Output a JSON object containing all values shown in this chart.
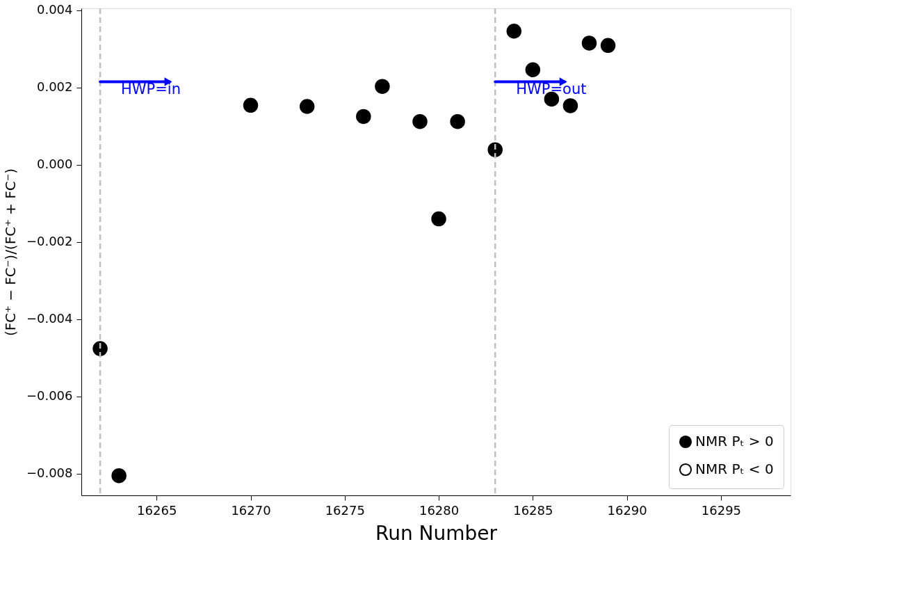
{
  "chart_data": {
    "type": "scatter",
    "xlabel": "Run Number",
    "ylabel": "(FC⁺ − FC⁻)/(FC⁺ + FC⁻)",
    "x": [
      16262,
      16263,
      16270,
      16273,
      16276,
      16277,
      16279,
      16280,
      16281,
      16283,
      16284,
      16285,
      16286,
      16287,
      16288,
      16289
    ],
    "series": [
      {
        "name": "NMR Pₜ > 0",
        "color": "#000000",
        "values": [
          -0.00476,
          -0.00805,
          0.00154,
          0.00151,
          0.00125,
          0.00203,
          0.00112,
          -0.0014,
          0.00112,
          0.00039,
          0.00346,
          0.00246,
          0.0017,
          0.00153,
          0.00315,
          0.00309
        ]
      },
      {
        "name": "NMR Pₜ < 0",
        "color": "#ffffff",
        "values": [
          null,
          null,
          null,
          null,
          null,
          null,
          null,
          null,
          null,
          null,
          null,
          null,
          null,
          null,
          null,
          null
        ]
      }
    ],
    "marker": "circle",
    "xlim": [
      16261,
      16298.7
    ],
    "ylim": [
      -0.00856,
      0.00405
    ],
    "xticks": [
      16265,
      16270,
      16275,
      16280,
      16285,
      16290,
      16295
    ],
    "yticks": [
      {
        "value": -0.008,
        "label": "−0.008"
      },
      {
        "value": -0.006,
        "label": "−0.006"
      },
      {
        "value": -0.004,
        "label": "−0.004"
      },
      {
        "value": -0.002,
        "label": "−0.002"
      },
      {
        "value": 0,
        "label": "0.000"
      },
      {
        "value": 0.002,
        "label": "0.002"
      },
      {
        "value": 0.004,
        "label": "0.004"
      }
    ],
    "ref_lines": [
      {
        "axis": "x",
        "value": 16262,
        "color": "#c0c0c0",
        "line_style": "dashed"
      },
      {
        "axis": "x",
        "value": 16283,
        "color": "#c0c0c0",
        "line_style": "dashed"
      }
    ],
    "annotations": [
      {
        "text": "HWP=in",
        "x": 16262,
        "y": 0.00215
      },
      {
        "text": "HWP=out",
        "x": 16283,
        "y": 0.00215
      }
    ],
    "grid": false,
    "legend": "bottom right"
  }
}
